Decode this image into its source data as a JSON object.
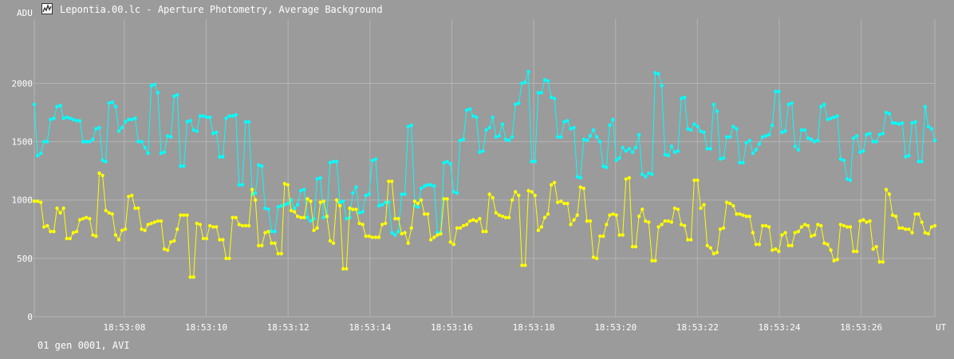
{
  "window": {
    "title": "Lepontia.00.lc - Aperture Photometry, Average Background",
    "icon": "lightcurve-app-icon"
  },
  "footer": {
    "text": "01 gen 0001, AVI"
  },
  "colors": {
    "background": "#9b9b9b",
    "grid": "#b4b4b4",
    "text": "#ffffff",
    "series_cyan": "#00ffff",
    "series_yellow": "#ffff00"
  },
  "chart_data": {
    "type": "line",
    "ylabel": "ADU",
    "xlabel": "UT",
    "grid": true,
    "ylim": [
      0,
      2550
    ],
    "xlim": [
      "18:53:05.8",
      "18:53:27.8"
    ],
    "x_start_seconds": 5.8,
    "x_end_seconds": 27.8,
    "yticks": [
      0,
      500,
      1000,
      1500,
      2000
    ],
    "xticks": [
      "18:53:08",
      "18:53:10",
      "18:53:12",
      "18:53:14",
      "18:53:16",
      "18:53:18",
      "18:53:20",
      "18:53:22",
      "18:53:24",
      "18:53:26"
    ],
    "series": [
      {
        "color": "#00ffff",
        "values": [
          1820,
          1380,
          1400,
          1500,
          1500,
          1690,
          1700,
          1800,
          1810,
          1700,
          1710,
          1700,
          1690,
          1680,
          1680,
          1500,
          1500,
          1500,
          1520,
          1610,
          1620,
          1340,
          1330,
          1830,
          1840,
          1800,
          1590,
          1620,
          1670,
          1690,
          1690,
          1700,
          1500,
          1500,
          1450,
          1400,
          1980,
          1990,
          1920,
          1400,
          1410,
          1550,
          1540,
          1890,
          1900,
          1290,
          1290,
          1670,
          1680,
          1600,
          1590,
          1720,
          1720,
          1710,
          1710,
          1570,
          1580,
          1370,
          1370,
          1700,
          1720,
          1720,
          1730,
          1130,
          1130,
          1670,
          1670,
          1050,
          1060,
          1300,
          1290,
          930,
          920,
          730,
          730,
          940,
          950,
          960,
          970,
          1000,
          930,
          960,
          1080,
          1090,
          850,
          820,
          840,
          1180,
          1190,
          850,
          860,
          1320,
          1330,
          1330,
          980,
          990,
          840,
          850,
          1060,
          1110,
          890,
          900,
          1040,
          1050,
          1340,
          1350,
          950,
          960,
          980,
          980,
          720,
          700,
          730,
          1050,
          1050,
          1630,
          1640,
          950,
          940,
          1100,
          1120,
          1130,
          1130,
          1120,
          720,
          720,
          1320,
          1330,
          1310,
          1070,
          1060,
          1510,
          1520,
          1770,
          1780,
          1720,
          1710,
          1410,
          1420,
          1600,
          1620,
          1710,
          1540,
          1550,
          1650,
          1520,
          1510,
          1540,
          1820,
          1830,
          2000,
          2010,
          2100,
          1330,
          1330,
          1920,
          1920,
          2030,
          2020,
          1880,
          1870,
          1540,
          1540,
          1670,
          1680,
          1610,
          1620,
          1200,
          1190,
          1520,
          1510,
          1550,
          1600,
          1540,
          1500,
          1290,
          1280,
          1640,
          1690,
          1340,
          1360,
          1450,
          1420,
          1440,
          1410,
          1450,
          1560,
          1220,
          1200,
          1230,
          1220,
          2090,
          2080,
          1980,
          1390,
          1380,
          1460,
          1410,
          1420,
          1870,
          1880,
          1610,
          1600,
          1650,
          1630,
          1590,
          1580,
          1440,
          1440,
          1820,
          1760,
          1350,
          1360,
          1540,
          1540,
          1630,
          1610,
          1320,
          1320,
          1490,
          1510,
          1400,
          1430,
          1480,
          1540,
          1550,
          1560,
          1640,
          1930,
          1930,
          1580,
          1590,
          1820,
          1830,
          1460,
          1430,
          1600,
          1600,
          1530,
          1520,
          1500,
          1510,
          1800,
          1820,
          1690,
          1700,
          1710,
          1720,
          1350,
          1340,
          1180,
          1170,
          1530,
          1550,
          1410,
          1420,
          1560,
          1570,
          1500,
          1500,
          1560,
          1570,
          1750,
          1740,
          1660,
          1660,
          1650,
          1660,
          1370,
          1380,
          1660,
          1670,
          1330,
          1330,
          1800,
          1630,
          1610,
          1510
        ]
      },
      {
        "color": "#ffff00",
        "values": [
          990,
          990,
          980,
          770,
          780,
          730,
          730,
          930,
          890,
          930,
          670,
          670,
          720,
          730,
          830,
          840,
          850,
          840,
          700,
          690,
          1230,
          1210,
          910,
          890,
          880,
          700,
          660,
          740,
          750,
          1030,
          1040,
          930,
          930,
          750,
          740,
          790,
          800,
          810,
          820,
          820,
          580,
          570,
          640,
          650,
          750,
          870,
          870,
          870,
          340,
          340,
          800,
          790,
          670,
          670,
          780,
          770,
          770,
          660,
          660,
          500,
          500,
          850,
          850,
          790,
          780,
          780,
          780,
          1090,
          1000,
          610,
          610,
          720,
          730,
          630,
          630,
          540,
          540,
          1140,
          1130,
          910,
          900,
          860,
          850,
          850,
          1010,
          990,
          740,
          760,
          980,
          990,
          860,
          650,
          630,
          1000,
          950,
          410,
          410,
          930,
          920,
          920,
          800,
          790,
          690,
          690,
          680,
          680,
          680,
          790,
          800,
          1160,
          1160,
          840,
          840,
          710,
          720,
          630,
          760,
          990,
          970,
          1000,
          880,
          880,
          660,
          680,
          700,
          710,
          1010,
          1010,
          640,
          620,
          760,
          760,
          780,
          790,
          820,
          830,
          820,
          840,
          730,
          730,
          1050,
          1020,
          890,
          870,
          860,
          850,
          850,
          1000,
          1070,
          1040,
          440,
          440,
          1080,
          1070,
          1040,
          740,
          770,
          850,
          880,
          1130,
          1150,
          980,
          990,
          970,
          970,
          790,
          830,
          870,
          1110,
          1100,
          820,
          820,
          510,
          500,
          690,
          690,
          790,
          870,
          880,
          870,
          700,
          700,
          1180,
          1190,
          600,
          600,
          860,
          920,
          820,
          810,
          480,
          480,
          770,
          790,
          820,
          820,
          810,
          930,
          920,
          790,
          780,
          660,
          660,
          1170,
          1170,
          930,
          960,
          610,
          590,
          540,
          550,
          750,
          760,
          980,
          970,
          950,
          880,
          880,
          870,
          860,
          860,
          720,
          620,
          620,
          780,
          780,
          770,
          570,
          580,
          560,
          700,
          720,
          610,
          610,
          720,
          730,
          770,
          790,
          780,
          690,
          700,
          790,
          780,
          630,
          620,
          570,
          480,
          490,
          790,
          780,
          770,
          770,
          560,
          560,
          820,
          830,
          810,
          820,
          580,
          600,
          470,
          470,
          1090,
          1050,
          870,
          860,
          760,
          760,
          750,
          750,
          720,
          880,
          880,
          810,
          720,
          710,
          770,
          780
        ]
      }
    ]
  }
}
